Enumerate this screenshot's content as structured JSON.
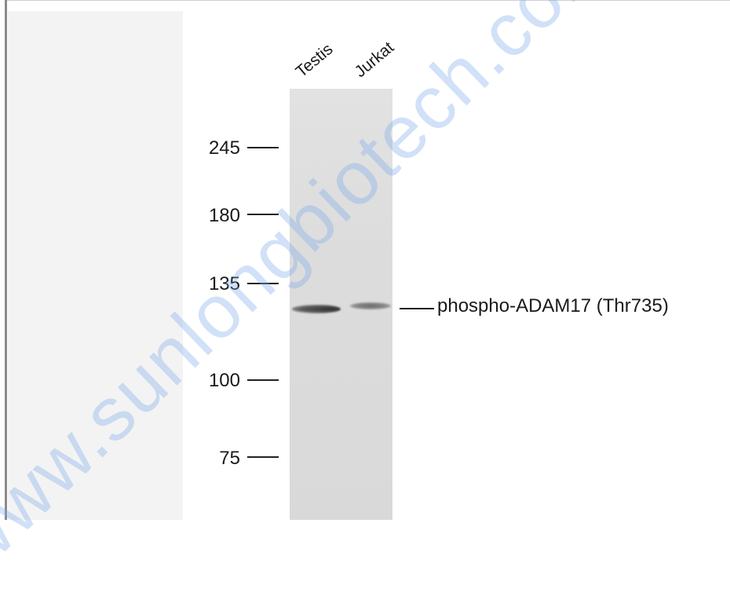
{
  "lanes": [
    "Testis",
    "Jurkat"
  ],
  "markers": [
    {
      "label": "245"
    },
    {
      "label": "180"
    },
    {
      "label": "135"
    },
    {
      "label": "100"
    },
    {
      "label": "75"
    }
  ],
  "band_label": "phospho-ADAM17 (Thr735)",
  "watermark": "www.sunlongbiotech.com"
}
